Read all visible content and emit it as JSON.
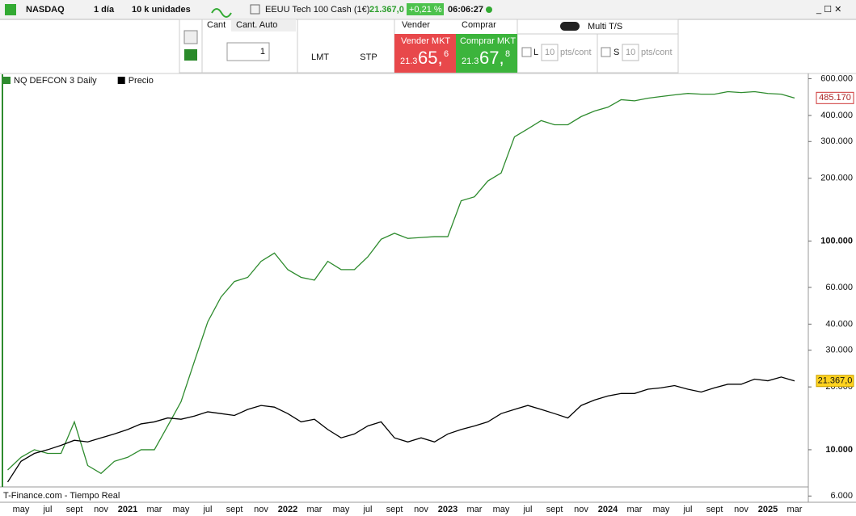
{
  "toolbar": {
    "symbol": "NASDAQ",
    "timeframe": "1 día",
    "quantity": "10 k unidades",
    "instrument": "EEUU Tech 100 Cash (1€)",
    "price": "21.367,0",
    "change": "+0,21 %",
    "time": "06:06:27"
  },
  "order_panel": {
    "cant": "Cant",
    "cant_auto": "Cant. Auto",
    "quantity": "1",
    "lmt": "LMT",
    "stp": "STP",
    "sell": "Vender",
    "buy": "Comprar",
    "sell_mkt": "Vender MKT",
    "sell_prefix": "21.3",
    "sell_main": "65,",
    "sell_sup": "6",
    "buy_mkt": "Comprar MKT",
    "buy_prefix": "21.3",
    "buy_main": "67,",
    "buy_sup": "8",
    "multi_ts": "Multi T/S",
    "limit": "L",
    "limit_value": "10",
    "limit_unit": "pts/cont",
    "stop": "S",
    "stop_value": "10",
    "stop_unit": "pts/cont"
  },
  "chart_data": {
    "type": "line",
    "log_scale": true,
    "categories": [
      null,
      "may",
      null,
      "jul",
      null,
      "sept",
      null,
      "nov",
      null,
      "2021",
      null,
      "mar",
      null,
      "may",
      null,
      "jul",
      null,
      "sept",
      null,
      "nov",
      null,
      "2022",
      null,
      "mar",
      null,
      "may",
      null,
      "jul",
      null,
      "sept",
      null,
      "nov",
      null,
      "2023",
      null,
      "mar",
      null,
      "may",
      null,
      "jul",
      null,
      "sept",
      null,
      "nov",
      null,
      "2024",
      null,
      "mar",
      null,
      "may",
      null,
      "jul",
      null,
      "sept",
      null,
      "nov",
      null,
      "2025",
      null,
      "mar"
    ],
    "series": [
      {
        "name": "NQ DEFCON 3 Daily",
        "color": "#2e8b2e",
        "last_label": "485.170",
        "values": [
          8000,
          9200,
          10000,
          9600,
          9600,
          13600,
          8400,
          7700,
          8800,
          9200,
          10000,
          10000,
          13000,
          17000,
          26500,
          41000,
          54000,
          64000,
          67000,
          80000,
          87600,
          73000,
          67000,
          65000,
          80000,
          73000,
          73000,
          84000,
          102000,
          109000,
          103000,
          104000,
          105000,
          105000,
          156000,
          163000,
          194000,
          212000,
          316000,
          345000,
          378000,
          361000,
          361000,
          395000,
          420000,
          438000,
          476000,
          470000,
          484000,
          493000,
          502000,
          510000,
          506000,
          506000,
          520000,
          515000,
          520000,
          510000,
          506000,
          485170
        ]
      },
      {
        "name": "Precio",
        "color": "#000000",
        "last_label": "21.367,0",
        "values": [
          7000,
          8800,
          9600,
          10000,
          10500,
          11100,
          10900,
          11400,
          11900,
          12500,
          13300,
          13600,
          14200,
          14000,
          14500,
          15200,
          14900,
          14600,
          15600,
          16300,
          16000,
          14900,
          13600,
          14000,
          12500,
          11400,
          11900,
          13000,
          13600,
          11400,
          10900,
          11400,
          10900,
          11900,
          12500,
          13000,
          13600,
          14900,
          15600,
          16300,
          15600,
          14900,
          14200,
          16300,
          17300,
          18100,
          18600,
          18600,
          19500,
          19800,
          20300,
          19500,
          18900,
          19800,
          20600,
          20600,
          21800,
          21400,
          22300,
          21367
        ]
      }
    ],
    "ylim": [
      5600,
      630000
    ],
    "yticks": [
      {
        "value": 6000,
        "label": "6.000"
      },
      {
        "value": 10000,
        "label": "10.000"
      },
      {
        "value": 20000,
        "label": "20.000"
      },
      {
        "value": 30000,
        "label": "30.000"
      },
      {
        "value": 40000,
        "label": "40.000"
      },
      {
        "value": 60000,
        "label": "60.000"
      },
      {
        "value": 100000,
        "label": "100.000"
      },
      {
        "value": 200000,
        "label": "200.000"
      },
      {
        "value": 300000,
        "label": "300.000"
      },
      {
        "value": 400000,
        "label": "400.000"
      },
      {
        "value": 600000,
        "label": "600.000"
      }
    ]
  },
  "footer": "T-Finance.com - Tiempo Real"
}
